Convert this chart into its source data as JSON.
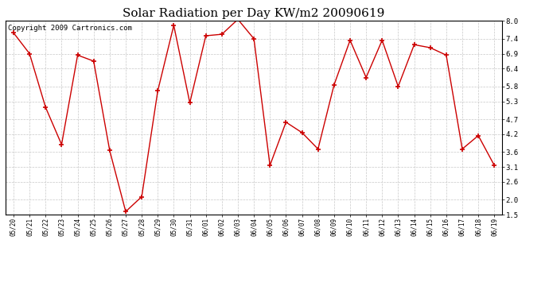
{
  "title": "Solar Radiation per Day KW/m2 20090619",
  "copyright": "Copyright 2009 Cartronics.com",
  "dates": [
    "05/20",
    "05/21",
    "05/22",
    "05/23",
    "05/24",
    "05/25",
    "05/26",
    "05/27",
    "05/28",
    "05/29",
    "05/30",
    "05/31",
    "06/01",
    "06/02",
    "06/03",
    "06/04",
    "06/05",
    "06/06",
    "06/07",
    "06/08",
    "06/09",
    "06/10",
    "06/11",
    "06/12",
    "06/13",
    "06/14",
    "06/15",
    "06/16",
    "06/17",
    "06/18",
    "06/19"
  ],
  "values": [
    7.6,
    6.9,
    5.1,
    3.85,
    6.85,
    6.65,
    3.65,
    1.6,
    2.1,
    5.65,
    7.85,
    5.25,
    7.5,
    7.55,
    8.05,
    7.4,
    3.15,
    4.6,
    4.25,
    3.7,
    5.85,
    7.35,
    6.1,
    7.35,
    5.8,
    7.2,
    7.1,
    6.85,
    3.7,
    4.15,
    3.15
  ],
  "line_color": "#cc0000",
  "marker_color": "#cc0000",
  "bg_color": "#ffffff",
  "plot_bg_color": "#ffffff",
  "grid_color": "#c8c8c8",
  "ylim_min": 1.5,
  "ylim_max": 8.0,
  "yticks": [
    1.5,
    2.0,
    2.6,
    3.1,
    3.6,
    4.2,
    4.7,
    5.3,
    5.8,
    6.4,
    6.9,
    7.4,
    8.0
  ],
  "title_fontsize": 11,
  "copyright_fontsize": 6.5
}
